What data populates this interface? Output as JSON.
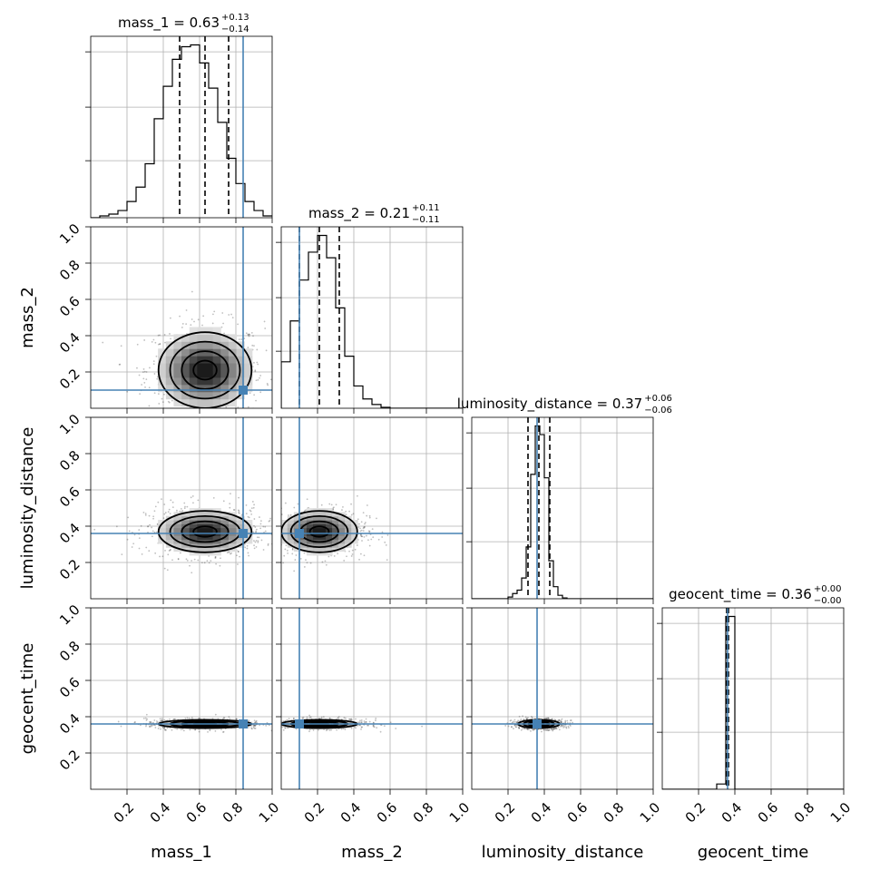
{
  "chart_data": {
    "type": "corner",
    "parameters": [
      "mass_1",
      "mass_2",
      "luminosity_distance",
      "geocent_time"
    ],
    "axis_range": [
      0,
      1
    ],
    "x_ticks": [
      0.2,
      0.4,
      0.6,
      0.8,
      1.0
    ],
    "y_ticks": [
      0.2,
      0.4,
      0.6,
      0.8,
      1.0
    ],
    "truth_color": "#4682b4",
    "truths": {
      "mass_1": 0.84,
      "mass_2": 0.1,
      "luminosity_distance": 0.36,
      "geocent_time": 0.36
    },
    "titles": [
      {
        "param": "mass_1",
        "name": "mass_1",
        "value": "0.63",
        "plus": "+0.13",
        "minus": "−0.14"
      },
      {
        "param": "mass_2",
        "name": "mass_2",
        "value": "0.21",
        "plus": "+0.11",
        "minus": "−0.11"
      },
      {
        "param": "luminosity_distance",
        "name": "luminosity_distance",
        "value": "0.37",
        "plus": "+0.06",
        "minus": "−0.06"
      },
      {
        "param": "geocent_time",
        "name": "geocent_time",
        "value": "0.36",
        "plus": "+0.00",
        "minus": "−0.00"
      }
    ],
    "quantiles": {
      "mass_1": [
        0.49,
        0.63,
        0.76
      ],
      "mass_2": [
        0.1,
        0.21,
        0.32
      ],
      "luminosity_distance": [
        0.31,
        0.37,
        0.43
      ],
      "geocent_time": [
        0.355,
        0.36,
        0.365
      ]
    },
    "histograms": {
      "mass_1": {
        "bin_width": 0.05,
        "counts": [
          0,
          0.01,
          0.02,
          0.04,
          0.09,
          0.17,
          0.3,
          0.55,
          0.73,
          0.88,
          0.95,
          0.96,
          0.86,
          0.72,
          0.53,
          0.33,
          0.19,
          0.09,
          0.04,
          0.01
        ]
      },
      "mass_2": {
        "bin_width": 0.05,
        "counts": [
          0.25,
          0.47,
          0.69,
          0.84,
          0.93,
          0.81,
          0.54,
          0.28,
          0.12,
          0.05,
          0.02,
          0.005,
          0,
          0,
          0,
          0,
          0,
          0,
          0,
          0
        ]
      },
      "luminosity_distance": {
        "bin_width": 0.025,
        "counts": [
          0,
          0,
          0,
          0,
          0,
          0,
          0,
          0,
          0.01,
          0.03,
          0.05,
          0.12,
          0.3,
          0.72,
          1.0,
          0.95,
          0.7,
          0.22,
          0.07,
          0.02,
          0.005,
          0,
          0,
          0,
          0,
          0,
          0,
          0,
          0,
          0,
          0,
          0,
          0,
          0,
          0,
          0,
          0,
          0,
          0,
          0
        ]
      },
      "geocent_time": {
        "bin_width": 0.05,
        "counts": [
          0,
          0,
          0,
          0,
          0,
          0,
          0.03,
          0.98,
          0,
          0,
          0,
          0,
          0,
          0,
          0,
          0,
          0,
          0,
          0,
          0
        ]
      }
    },
    "posterior_means": {
      "mass_1": 0.63,
      "mass_2": 0.21,
      "luminosity_distance": 0.37,
      "geocent_time": 0.36
    },
    "posterior_sigmas": {
      "mass_1": 0.135,
      "mass_2": 0.11,
      "luminosity_distance": 0.06,
      "geocent_time": 0.01
    },
    "contour_levels_sigma": [
      0.5,
      1.0,
      1.5,
      2.0
    ]
  }
}
